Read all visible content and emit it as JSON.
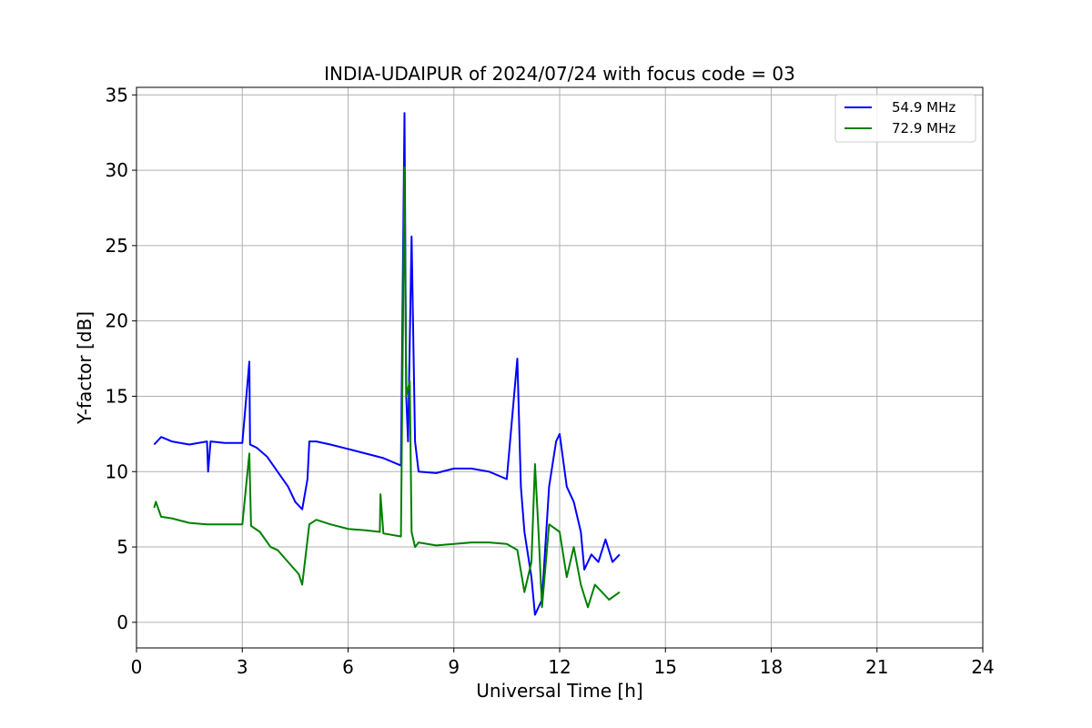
{
  "chart_data": {
    "type": "line",
    "title": "INDIA-UDAIPUR of 2024/07/24 with focus code = 03",
    "xlabel": "Universal Time [h]",
    "ylabel": "Y-factor [dB]",
    "xlim": [
      0,
      24
    ],
    "ylim": [
      -1.7,
      35.5
    ],
    "xticks": [
      0,
      3,
      6,
      9,
      12,
      15,
      18,
      21,
      24
    ],
    "yticks": [
      0,
      5,
      10,
      15,
      20,
      25,
      30,
      35
    ],
    "grid": true,
    "legend_position": "top-right",
    "series": [
      {
        "name": "54.9 MHz",
        "color": "#0000ff",
        "x": [
          0.5,
          0.7,
          1.0,
          1.5,
          2.0,
          2.03,
          2.1,
          2.5,
          3.0,
          3.2,
          3.22,
          3.4,
          3.7,
          4.0,
          4.3,
          4.5,
          4.7,
          4.85,
          4.9,
          5.1,
          5.5,
          6.0,
          6.5,
          7.0,
          7.3,
          7.5,
          7.6,
          7.65,
          7.7,
          7.8,
          7.9,
          8.0,
          8.5,
          9.0,
          9.5,
          10.0,
          10.5,
          10.8,
          10.9,
          11.0,
          11.2,
          11.3,
          11.5,
          11.7,
          11.9,
          12.0,
          12.2,
          12.4,
          12.6,
          12.7,
          12.9,
          13.1,
          13.3,
          13.5,
          13.7
        ],
        "y": [
          11.8,
          12.3,
          12.0,
          11.8,
          12.0,
          10.0,
          12.0,
          11.9,
          11.9,
          17.3,
          11.8,
          11.6,
          11.0,
          10.0,
          9.0,
          8.0,
          7.5,
          9.5,
          12.0,
          12.0,
          11.8,
          11.5,
          11.2,
          10.9,
          10.6,
          10.4,
          33.8,
          15.0,
          12.0,
          25.6,
          12.0,
          10.0,
          9.9,
          10.2,
          10.2,
          10.0,
          9.5,
          17.5,
          9.0,
          6.0,
          3.0,
          0.5,
          1.5,
          9.0,
          12.0,
          12.5,
          9.0,
          8.0,
          6.0,
          3.5,
          4.5,
          4.0,
          5.5,
          4.0,
          4.5
        ]
      },
      {
        "name": "72.9 MHz",
        "color": "#008000",
        "x": [
          0.5,
          0.55,
          0.7,
          1.0,
          1.5,
          2.0,
          2.5,
          3.0,
          3.2,
          3.25,
          3.5,
          3.8,
          4.0,
          4.3,
          4.6,
          4.7,
          4.9,
          5.1,
          5.5,
          6.0,
          6.5,
          6.9,
          6.92,
          7.0,
          7.5,
          7.6,
          7.65,
          7.75,
          7.8,
          7.9,
          8.0,
          8.5,
          9.0,
          9.5,
          10.0,
          10.5,
          10.8,
          11.0,
          11.2,
          11.3,
          11.4,
          11.5,
          11.7,
          12.0,
          12.2,
          12.4,
          12.6,
          12.8,
          13.0,
          13.2,
          13.4,
          13.7
        ],
        "y": [
          7.6,
          8.0,
          7.0,
          6.9,
          6.6,
          6.5,
          6.5,
          6.5,
          11.2,
          6.4,
          6.0,
          5.0,
          4.8,
          4.0,
          3.2,
          2.5,
          6.5,
          6.8,
          6.5,
          6.2,
          6.1,
          6.0,
          8.5,
          5.9,
          5.7,
          30.2,
          15.0,
          16.0,
          6.0,
          5.0,
          5.3,
          5.1,
          5.2,
          5.3,
          5.3,
          5.2,
          4.8,
          2.0,
          4.0,
          10.5,
          6.0,
          1.0,
          6.5,
          6.0,
          3.0,
          5.0,
          2.5,
          1.0,
          2.5,
          2.0,
          1.5,
          2.0
        ]
      }
    ]
  }
}
